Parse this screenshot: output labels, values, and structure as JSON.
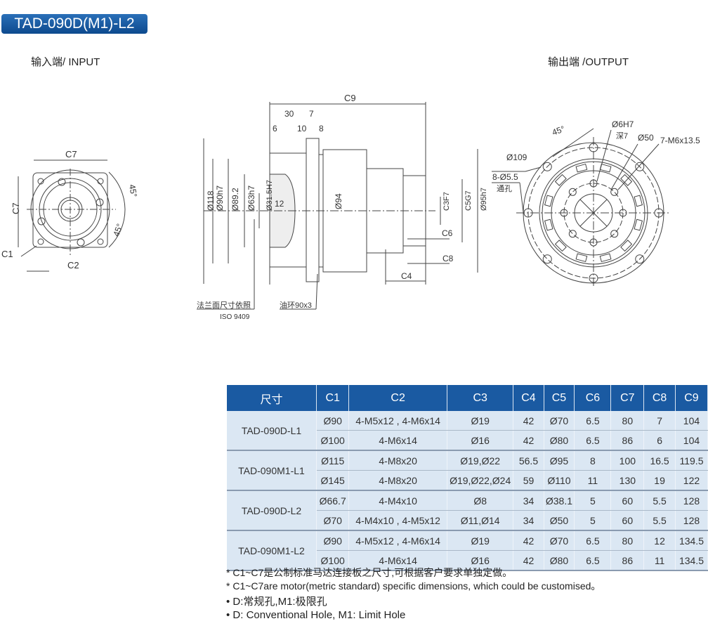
{
  "title": "TAD-090D(M1)-L2",
  "input_label": "输入端/ INPUT",
  "output_label": "输出端 /OUTPUT",
  "colors": {
    "accent": "#1a5aa2",
    "table_body": "#dbe7f3"
  },
  "input_view": {
    "c7_top": "C7",
    "c7_left": "C7",
    "c1": "C1",
    "c2": "C2",
    "angle1": "45°",
    "angle2": "45°"
  },
  "side_view": {
    "c9": "C9",
    "d30": "30",
    "d7": "7",
    "d6": "6",
    "d10": "10",
    "d8": "8",
    "d118": "Ø118",
    "d90": "Ø90h7",
    "d89": "Ø89.2",
    "d63": "Ø63h7",
    "d31": "Ø31.5H7",
    "d12": "12",
    "d94": "Ø94",
    "c3": "C3F7",
    "c5": "C5G7",
    "d95": "Ø95h7",
    "c6": "C6",
    "c8": "C8",
    "c4": "C4",
    "note_flange": "法兰面尺寸依照",
    "note_iso": "ISO 9409",
    "note_oilring": "油环90x3"
  },
  "output_view": {
    "angle": "45°",
    "d6h7": "Ø6H7",
    "depth": "深7",
    "d50": "Ø50",
    "d109": "Ø109",
    "thread": "7-M6x13.5",
    "holes": "8-Ø5.5",
    "through": "通孔"
  },
  "table": {
    "headers": [
      "尺寸",
      "C1",
      "C2",
      "C3",
      "C4",
      "C5",
      "C6",
      "C7",
      "C8",
      "C9"
    ],
    "groups": [
      {
        "model": "TAD-090D-L1",
        "rows": [
          [
            "Ø90",
            "4-M5x12 , 4-M6x14",
            "Ø19",
            "42",
            "Ø70",
            "6.5",
            "80",
            "7",
            "104"
          ],
          [
            "Ø100",
            "4-M6x14",
            "Ø16",
            "42",
            "Ø80",
            "6.5",
            "86",
            "6",
            "104"
          ]
        ]
      },
      {
        "model": "TAD-090M1-L1",
        "rows": [
          [
            "Ø115",
            "4-M8x20",
            "Ø19,Ø22",
            "56.5",
            "Ø95",
            "8",
            "100",
            "16.5",
            "119.5"
          ],
          [
            "Ø145",
            "4-M8x20",
            "Ø19,Ø22,Ø24",
            "59",
            "Ø110",
            "11",
            "130",
            "19",
            "122"
          ]
        ]
      },
      {
        "model": "TAD-090D-L2",
        "rows": [
          [
            "Ø66.7",
            "4-M4x10",
            "Ø8",
            "34",
            "Ø38.1",
            "5",
            "60",
            "5.5",
            "128"
          ],
          [
            "Ø70",
            "4-M4x10 , 4-M5x12",
            "Ø11,Ø14",
            "34",
            "Ø50",
            "5",
            "60",
            "5.5",
            "128"
          ]
        ]
      },
      {
        "model": "TAD-090M1-L2",
        "rows": [
          [
            "Ø90",
            "4-M5x12 , 4-M6x14",
            "Ø19",
            "42",
            "Ø70",
            "6.5",
            "80",
            "12",
            "134.5"
          ],
          [
            "Ø100",
            "4-M6x14",
            "Ø16",
            "42",
            "Ø80",
            "6.5",
            "86",
            "11",
            "134.5"
          ]
        ]
      }
    ]
  },
  "notes": [
    "* C1~C7是公制标准马达连接板之尺寸,可根据客户要求单独定做。",
    "* C1~C7are motor(metric standard)  specific dimensions, which could be customised。",
    "• D:常规孔,M1:极限孔",
    "• D: Conventional Hole, M1: Limit Hole"
  ]
}
